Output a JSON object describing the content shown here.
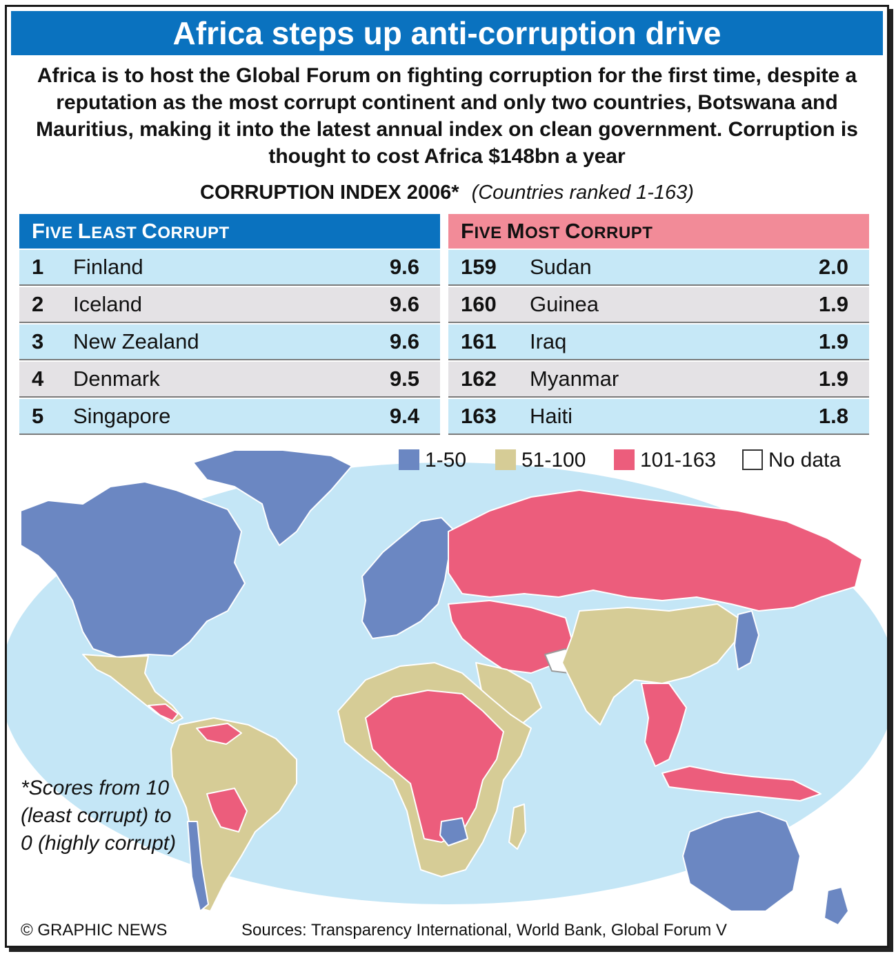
{
  "title": "Africa steps up anti-corruption drive",
  "intro": "Africa is to host the Global Forum on fighting corruption for the first time, despite a reputation as the most corrupt continent and only two countries, Botswana and Mauritius, making it into the latest annual index on clean government. Corruption is thought to cost Africa $148bn a year",
  "index_heading": {
    "title": "CORRUPTION INDEX 2006*",
    "subtitle": "(Countries ranked 1-163)"
  },
  "least_corrupt": {
    "heading_first": "F",
    "heading_rest": "IVE ",
    "heading_w2_first": "L",
    "heading_w2_rest": "EAST ",
    "heading_w3_first": "C",
    "heading_w3_rest": "ORRUPT",
    "rows": [
      {
        "rank": "1",
        "country": "Finland",
        "score": "9.6"
      },
      {
        "rank": "2",
        "country": "Iceland",
        "score": "9.6"
      },
      {
        "rank": "3",
        "country": "New Zealand",
        "score": "9.6"
      },
      {
        "rank": "4",
        "country": "Denmark",
        "score": "9.5"
      },
      {
        "rank": "5",
        "country": "Singapore",
        "score": "9.4"
      }
    ]
  },
  "most_corrupt": {
    "heading_first": "F",
    "heading_rest": "IVE ",
    "heading_w2_first": "M",
    "heading_w2_rest": "OST ",
    "heading_w3_first": "C",
    "heading_w3_rest": "ORRUPT",
    "rows": [
      {
        "rank": "159",
        "country": "Sudan",
        "score": "2.0"
      },
      {
        "rank": "160",
        "country": "Guinea",
        "score": "1.9"
      },
      {
        "rank": "161",
        "country": "Iraq",
        "score": "1.9"
      },
      {
        "rank": "162",
        "country": "Myanmar",
        "score": "1.9"
      },
      {
        "rank": "163",
        "country": "Haiti",
        "score": "1.8"
      }
    ]
  },
  "legend": [
    {
      "label": "1-50",
      "color": "#6b87c2"
    },
    {
      "label": "51-100",
      "color": "#d6cc96"
    },
    {
      "label": "101-163",
      "color": "#ec5d7c"
    },
    {
      "label": "No data",
      "color": "#ffffff"
    }
  ],
  "colors": {
    "title_bar": "#0a72bf",
    "ocean": "#c4e6f6",
    "band_1_50": "#6b87c2",
    "band_51_100": "#d6cc96",
    "band_101_163": "#ec5d7c"
  },
  "note": "*Scores from 10 (least corrupt) to 0 (highly corrupt)",
  "credit": "© GRAPHIC NEWS",
  "sources": "Sources: Transparency International, World Bank, Global Forum V"
}
